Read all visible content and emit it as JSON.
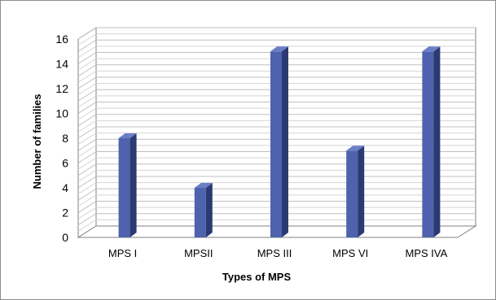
{
  "chart_data": {
    "type": "bar",
    "title": "",
    "xlabel": "Types of MPS",
    "ylabel": "Number of families",
    "categories": [
      "MPS I",
      "MPSII",
      "MPS III",
      "MPS VI",
      "MPS IVA"
    ],
    "values": [
      8,
      4,
      15,
      7,
      15
    ],
    "ylim": [
      0,
      16
    ],
    "yticks": [
      0,
      2,
      4,
      6,
      8,
      10,
      12,
      14,
      16
    ],
    "grid": true,
    "style_3d": true,
    "colors": {
      "bar_front": "#4f62ad",
      "bar_side": "#2c3a72",
      "bar_top": "#6a7ec8",
      "grid": "#bfbfbf",
      "axis": "#808080"
    }
  }
}
